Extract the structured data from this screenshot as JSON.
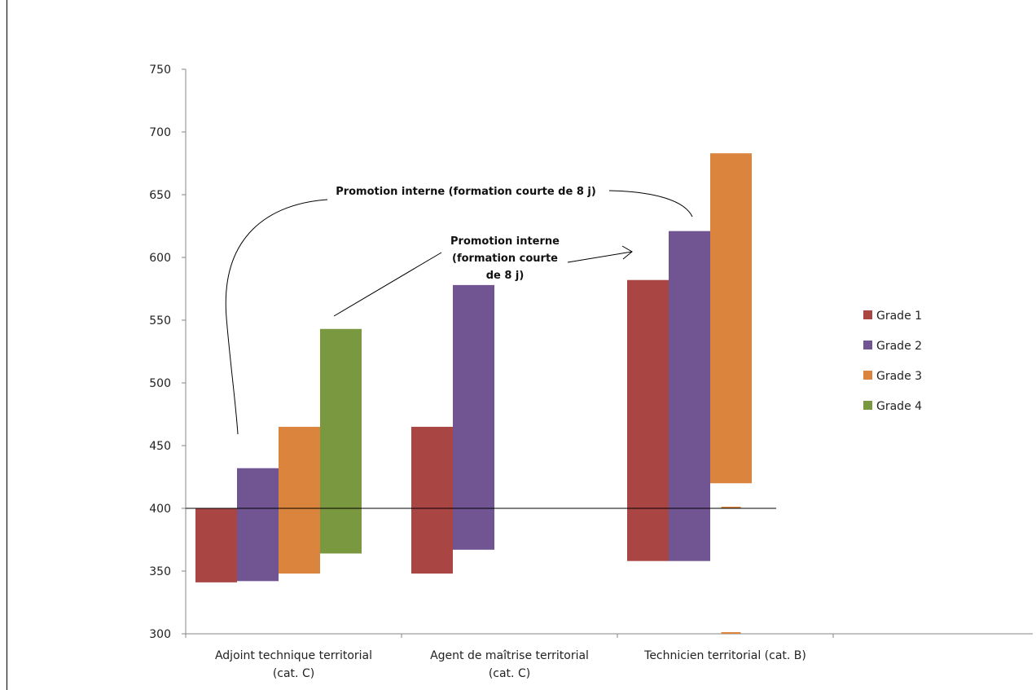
{
  "chart_data": {
    "type": "bar",
    "subtype": "floating-range",
    "title": "",
    "xlabel": "",
    "ylabel": "",
    "ylim": [
      300,
      750
    ],
    "yticks": [
      300,
      350,
      400,
      450,
      500,
      550,
      600,
      650,
      700,
      750
    ],
    "grid": false,
    "legend_position": "right",
    "reference_line": 400,
    "categories": [
      [
        "Adjoint technique territorial",
        "(cat. C)"
      ],
      [
        "Agent de maîtrise territorial",
        "(cat. C)"
      ],
      [
        "Technicien territorial (cat. B)"
      ]
    ],
    "series": [
      {
        "name": "Grade 1",
        "color": "#A94643",
        "ranges": [
          [
            341,
            400
          ],
          [
            348,
            465
          ],
          [
            358,
            582
          ]
        ]
      },
      {
        "name": "Grade 2",
        "color": "#715592",
        "ranges": [
          [
            342,
            432
          ],
          [
            367,
            578
          ],
          [
            358,
            621
          ]
        ]
      },
      {
        "name": "Grade 3",
        "color": "#DA843E",
        "ranges": [
          [
            348,
            465
          ],
          null,
          [
            420,
            683
          ]
        ]
      },
      {
        "name": "Grade 4",
        "color": "#7A9840",
        "ranges": [
          [
            364,
            543
          ],
          null,
          null
        ]
      }
    ],
    "annotations": [
      {
        "lines": [
          "Promotion interne (formation courte de 8 j)"
        ]
      },
      {
        "lines": [
          "Promotion interne",
          "(formation courte",
          "de 8 j)"
        ]
      }
    ]
  }
}
